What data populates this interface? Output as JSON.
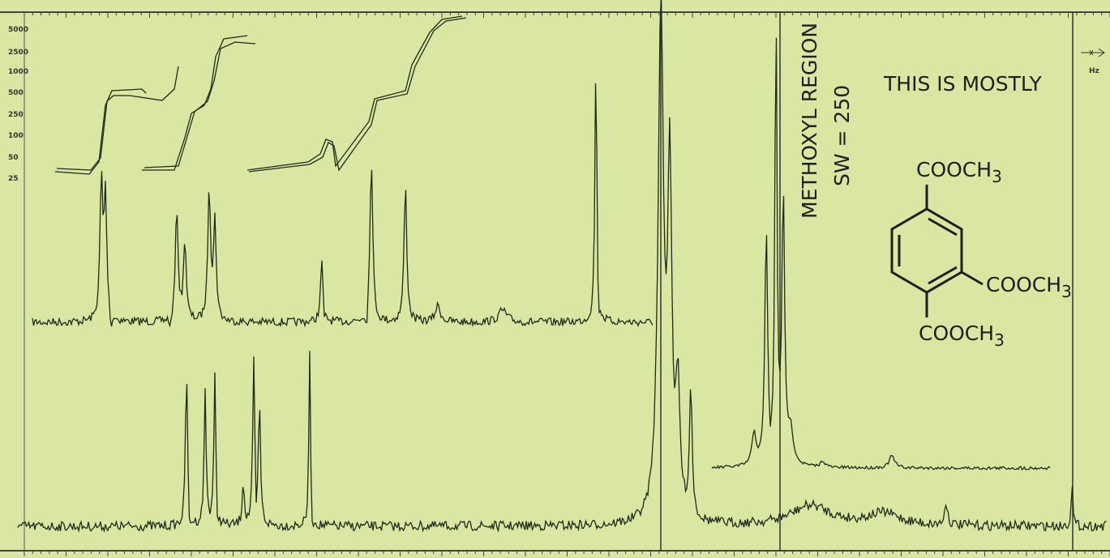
{
  "scale_labels": [
    "5000",
    "2500",
    "1000",
    "500",
    "250",
    "100",
    "50",
    "25"
  ],
  "unit_label": "Hz",
  "region_label": "METHOXYL REGION",
  "sweep_label": "SW = 250",
  "note": "THIS IS MOSTLY",
  "substituents": [
    {
      "main": "COOCH",
      "sub": "3"
    },
    {
      "main": "COOCH",
      "sub": "3"
    },
    {
      "main": "COOCH",
      "sub": "3"
    }
  ]
}
